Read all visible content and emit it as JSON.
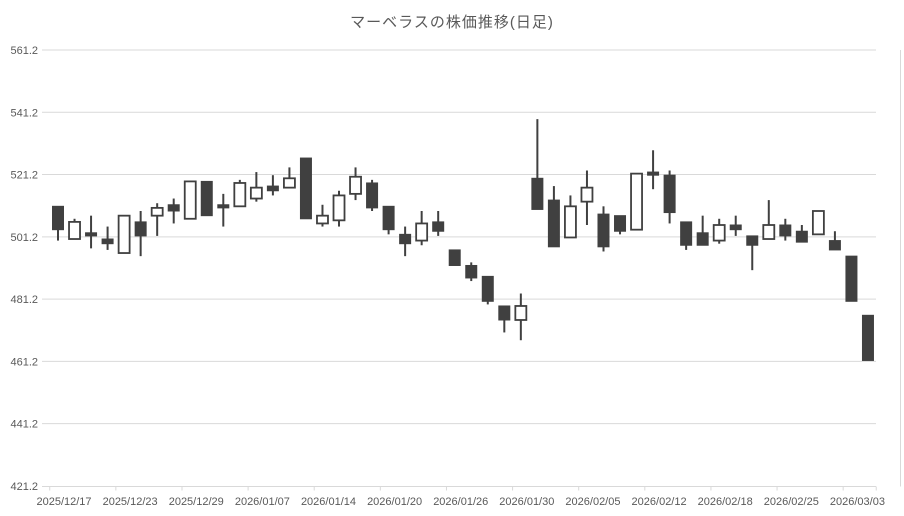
{
  "chart_data": {
    "type": "candlestick",
    "title": "マーベラスの株価推移(日足)",
    "y_axis": {
      "min": 421.2,
      "max": 561.2,
      "tick_step": 20,
      "tick_labels": [
        "561.2",
        "541.2",
        "521.2",
        "501.2",
        "481.2",
        "461.2",
        "441.2",
        "421.2"
      ]
    },
    "x_axis": {
      "label_interval": 4,
      "visible_labels": [
        "2025/12/17",
        "2025/12/23",
        "2025/12/29",
        "2026/01/07",
        "2026/01/14",
        "2026/01/20",
        "2026/01/26",
        "2026/01/30",
        "2026/02/05",
        "2026/02/12",
        "2026/02/18",
        "2026/02/25",
        "2026/03/03"
      ]
    },
    "colors": {
      "candle": "#404040",
      "up_fill": "#ffffff",
      "gridline": "#d9d9d9",
      "axis_text": "#595959",
      "title_text": "#595959",
      "background": "#ffffff"
    },
    "grid": "horizontal-only",
    "legend": "none",
    "series": [
      {
        "name": "日足",
        "ohlc": [
          {
            "date": "2025/12/17",
            "open": 511,
            "high": 511,
            "low": 500,
            "close": 503.5
          },
          {
            "date": "2025/12/18",
            "open": 500.5,
            "high": 507,
            "low": 500.5,
            "close": 506
          },
          {
            "date": "2025/12/19",
            "open": 502.5,
            "high": 508,
            "low": 497.5,
            "close": 501.5
          },
          {
            "date": "2025/12/22",
            "open": 500.5,
            "high": 504.5,
            "low": 497,
            "close": 499
          },
          {
            "date": "2025/12/23",
            "open": 496,
            "high": 508,
            "low": 496,
            "close": 508
          },
          {
            "date": "2025/12/24",
            "open": 506,
            "high": 509.5,
            "low": 495,
            "close": 501.5
          },
          {
            "date": "2025/12/25",
            "open": 508,
            "high": 512,
            "low": 501.5,
            "close": 510.5
          },
          {
            "date": "2025/12/26",
            "open": 511.5,
            "high": 513.5,
            "low": 505.5,
            "close": 509.5
          },
          {
            "date": "2025/12/29",
            "open": 507,
            "high": 519,
            "low": 507,
            "close": 519
          },
          {
            "date": "2025/12/30",
            "open": 519,
            "high": 519,
            "low": 508,
            "close": 508
          },
          {
            "date": "2026/01/05",
            "open": 511.5,
            "high": 515,
            "low": 504.5,
            "close": 510.5
          },
          {
            "date": "2026/01/06",
            "open": 511,
            "high": 519.5,
            "low": 511,
            "close": 518.5
          },
          {
            "date": "2026/01/07",
            "open": 513.5,
            "high": 522,
            "low": 512.5,
            "close": 517
          },
          {
            "date": "2026/01/08",
            "open": 517.5,
            "high": 521,
            "low": 514.5,
            "close": 516
          },
          {
            "date": "2026/01/09",
            "open": 517,
            "high": 523.5,
            "low": 517,
            "close": 520
          },
          {
            "date": "2026/01/13",
            "open": 526.5,
            "high": 526.5,
            "low": 507,
            "close": 507
          },
          {
            "date": "2026/01/14",
            "open": 505.5,
            "high": 511.5,
            "low": 504.5,
            "close": 508
          },
          {
            "date": "2026/01/15",
            "open": 506.5,
            "high": 516,
            "low": 504.5,
            "close": 514.5
          },
          {
            "date": "2026/01/16",
            "open": 515,
            "high": 523.5,
            "low": 513,
            "close": 520.5
          },
          {
            "date": "2026/01/19",
            "open": 518.5,
            "high": 519.5,
            "low": 509.5,
            "close": 510.5
          },
          {
            "date": "2026/01/20",
            "open": 511,
            "high": 511,
            "low": 502,
            "close": 503.5
          },
          {
            "date": "2026/01/21",
            "open": 502,
            "high": 504.5,
            "low": 495,
            "close": 499
          },
          {
            "date": "2026/01/22",
            "open": 500,
            "high": 509.5,
            "low": 498.5,
            "close": 505.5
          },
          {
            "date": "2026/01/23",
            "open": 506,
            "high": 509.5,
            "low": 501.5,
            "close": 503
          },
          {
            "date": "2026/01/26",
            "open": 497,
            "high": 497,
            "low": 492,
            "close": 492
          },
          {
            "date": "2026/01/27",
            "open": 492,
            "high": 493,
            "low": 487,
            "close": 488
          },
          {
            "date": "2026/01/28",
            "open": 488.5,
            "high": 488.5,
            "low": 479.5,
            "close": 480.5
          },
          {
            "date": "2026/01/29",
            "open": 479,
            "high": 479,
            "low": 470.5,
            "close": 474.5
          },
          {
            "date": "2026/01/30",
            "open": 474.5,
            "high": 483,
            "low": 468,
            "close": 479
          },
          {
            "date": "2026/02/02",
            "open": 520,
            "high": 539,
            "low": 510,
            "close": 510
          },
          {
            "date": "2026/02/03",
            "open": 513,
            "high": 517.5,
            "low": 498,
            "close": 498
          },
          {
            "date": "2026/02/04",
            "open": 501,
            "high": 514.5,
            "low": 501,
            "close": 511
          },
          {
            "date": "2026/02/05",
            "open": 512.5,
            "high": 522.5,
            "low": 505,
            "close": 517
          },
          {
            "date": "2026/02/06",
            "open": 508.5,
            "high": 511,
            "low": 496.5,
            "close": 498
          },
          {
            "date": "2026/02/09",
            "open": 508,
            "high": 508,
            "low": 502,
            "close": 503
          },
          {
            "date": "2026/02/10",
            "open": 503.5,
            "high": 521.5,
            "low": 503.5,
            "close": 521.5
          },
          {
            "date": "2026/02/12",
            "open": 522,
            "high": 529,
            "low": 516.5,
            "close": 521
          },
          {
            "date": "2026/02/13",
            "open": 521,
            "high": 522.5,
            "low": 505.5,
            "close": 509
          },
          {
            "date": "2026/02/16",
            "open": 506,
            "high": 506,
            "low": 497,
            "close": 498.5
          },
          {
            "date": "2026/02/17",
            "open": 502.5,
            "high": 508,
            "low": 498.5,
            "close": 498.5
          },
          {
            "date": "2026/02/18",
            "open": 500,
            "high": 507,
            "low": 499,
            "close": 505
          },
          {
            "date": "2026/02/19",
            "open": 505,
            "high": 508,
            "low": 501.5,
            "close": 503.5
          },
          {
            "date": "2026/02/20",
            "open": 501.5,
            "high": 501.5,
            "low": 490.5,
            "close": 498.5
          },
          {
            "date": "2026/02/24",
            "open": 500.5,
            "high": 513,
            "low": 500.5,
            "close": 505
          },
          {
            "date": "2026/02/25",
            "open": 505,
            "high": 507,
            "low": 500,
            "close": 501.5
          },
          {
            "date": "2026/02/26",
            "open": 503,
            "high": 505,
            "low": 499.5,
            "close": 499.5
          },
          {
            "date": "2026/02/27",
            "open": 502,
            "high": 509.5,
            "low": 502,
            "close": 509.5
          },
          {
            "date": "2026/03/02",
            "open": 500,
            "high": 503,
            "low": 497,
            "close": 497
          },
          {
            "date": "2026/03/03",
            "open": 495,
            "high": 495,
            "low": 480.5,
            "close": 480.5
          },
          {
            "date": "2026/03/04",
            "open": 476,
            "high": 476,
            "low": 461.5,
            "close": 461.5
          }
        ]
      }
    ]
  }
}
